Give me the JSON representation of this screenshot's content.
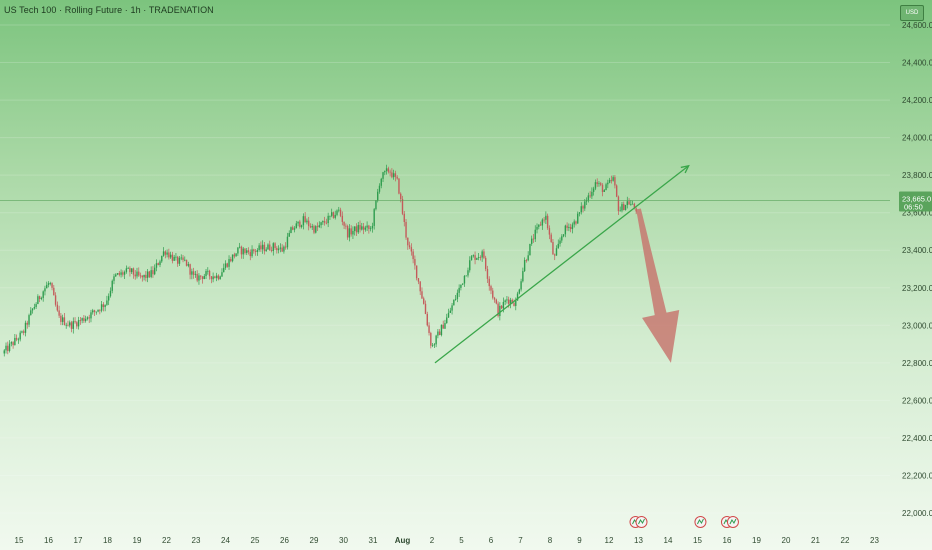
{
  "header": {
    "title": "US Tech 100 · Rolling Future · 1h · TRADENATION",
    "currency": "USD"
  },
  "chart_data": {
    "type": "candlestick",
    "ylim": [
      21950,
      24720
    ],
    "y_ticks": [
      22000,
      22200,
      22400,
      22600,
      22800,
      23000,
      23200,
      23400,
      23600,
      23800,
      24000,
      24200,
      24400,
      24600
    ],
    "y_tick_labels": [
      "22,000.0",
      "22,200.0",
      "22,400.0",
      "22,600.0",
      "22,800.0",
      "23,000.0",
      "23,200.0",
      "23,400.0",
      "23,600.0",
      "23,800.0",
      "24,000.0",
      "24,200.0",
      "24,400.0",
      "24,600.0"
    ],
    "x_ticks": [
      {
        "label": "15",
        "day": 0
      },
      {
        "label": "16",
        "day": 1
      },
      {
        "label": "17",
        "day": 2
      },
      {
        "label": "18",
        "day": 3
      },
      {
        "label": "19",
        "day": 4
      },
      {
        "label": "22",
        "day": 5
      },
      {
        "label": "23",
        "day": 6
      },
      {
        "label": "24",
        "day": 7
      },
      {
        "label": "25",
        "day": 8
      },
      {
        "label": "26",
        "day": 9
      },
      {
        "label": "29",
        "day": 10
      },
      {
        "label": "30",
        "day": 11
      },
      {
        "label": "31",
        "day": 12
      },
      {
        "label": "Aug",
        "day": 13,
        "bold": true
      },
      {
        "label": "2",
        "day": 14
      },
      {
        "label": "5",
        "day": 15
      },
      {
        "label": "6",
        "day": 16
      },
      {
        "label": "7",
        "day": 17
      },
      {
        "label": "8",
        "day": 18
      },
      {
        "label": "9",
        "day": 19
      },
      {
        "label": "12",
        "day": 20
      },
      {
        "label": "13",
        "day": 21
      },
      {
        "label": "14",
        "day": 22
      },
      {
        "label": "15",
        "day": 23
      },
      {
        "label": "16",
        "day": 24
      },
      {
        "label": "19",
        "day": 25
      },
      {
        "label": "20",
        "day": 26
      },
      {
        "label": "21",
        "day": 27
      },
      {
        "label": "22",
        "day": 28
      },
      {
        "label": "23",
        "day": 29
      }
    ],
    "current_price": "23,665.0",
    "current_price_value": 23665,
    "countdown": "06:50",
    "path_points": [
      {
        "day": -0.5,
        "price": 22850
      },
      {
        "day": 0.2,
        "price": 22960
      },
      {
        "day": 0.5,
        "price": 23080
      },
      {
        "day": 0.9,
        "price": 23190
      },
      {
        "day": 1.1,
        "price": 23230
      },
      {
        "day": 1.4,
        "price": 23040
      },
      {
        "day": 1.8,
        "price": 23000
      },
      {
        "day": 2.2,
        "price": 23030
      },
      {
        "day": 2.6,
        "price": 23070
      },
      {
        "day": 3.0,
        "price": 23120
      },
      {
        "day": 3.3,
        "price": 23260
      },
      {
        "day": 3.8,
        "price": 23290
      },
      {
        "day": 4.2,
        "price": 23250
      },
      {
        "day": 4.6,
        "price": 23280
      },
      {
        "day": 5.0,
        "price": 23400
      },
      {
        "day": 5.4,
        "price": 23340
      },
      {
        "day": 5.7,
        "price": 23340
      },
      {
        "day": 6.0,
        "price": 23250
      },
      {
        "day": 6.4,
        "price": 23270
      },
      {
        "day": 6.8,
        "price": 23260
      },
      {
        "day": 7.1,
        "price": 23330
      },
      {
        "day": 7.5,
        "price": 23400
      },
      {
        "day": 7.9,
        "price": 23390
      },
      {
        "day": 8.3,
        "price": 23410
      },
      {
        "day": 8.7,
        "price": 23420
      },
      {
        "day": 9.0,
        "price": 23400
      },
      {
        "day": 9.3,
        "price": 23510
      },
      {
        "day": 9.7,
        "price": 23560
      },
      {
        "day": 10.1,
        "price": 23510
      },
      {
        "day": 10.5,
        "price": 23560
      },
      {
        "day": 10.9,
        "price": 23610
      },
      {
        "day": 11.2,
        "price": 23490
      },
      {
        "day": 11.6,
        "price": 23520
      },
      {
        "day": 12.0,
        "price": 23510
      },
      {
        "day": 12.3,
        "price": 23780
      },
      {
        "day": 12.6,
        "price": 23830
      },
      {
        "day": 12.9,
        "price": 23760
      },
      {
        "day": 13.2,
        "price": 23460
      },
      {
        "day": 13.5,
        "price": 23300
      },
      {
        "day": 13.8,
        "price": 23100
      },
      {
        "day": 14.05,
        "price": 22880
      },
      {
        "day": 14.3,
        "price": 22960
      },
      {
        "day": 14.6,
        "price": 23050
      },
      {
        "day": 15.0,
        "price": 23200
      },
      {
        "day": 15.4,
        "price": 23360
      },
      {
        "day": 15.8,
        "price": 23380
      },
      {
        "day": 16.0,
        "price": 23220
      },
      {
        "day": 16.3,
        "price": 23070
      },
      {
        "day": 16.6,
        "price": 23140
      },
      {
        "day": 16.9,
        "price": 23120
      },
      {
        "day": 17.2,
        "price": 23340
      },
      {
        "day": 17.5,
        "price": 23470
      },
      {
        "day": 17.9,
        "price": 23590
      },
      {
        "day": 18.2,
        "price": 23350
      },
      {
        "day": 18.5,
        "price": 23500
      },
      {
        "day": 18.9,
        "price": 23550
      },
      {
        "day": 19.2,
        "price": 23640
      },
      {
        "day": 19.6,
        "price": 23760
      },
      {
        "day": 19.9,
        "price": 23720
      },
      {
        "day": 20.2,
        "price": 23780
      },
      {
        "day": 20.4,
        "price": 23610
      },
      {
        "day": 20.7,
        "price": 23660
      },
      {
        "day": 20.95,
        "price": 23620
      }
    ],
    "trendline": {
      "start": {
        "day": 14.1,
        "price": 22800
      },
      "end": {
        "day": 22.7,
        "price": 23850
      }
    },
    "forecast_arrow": {
      "start": {
        "day": 21.0,
        "price": 23620
      },
      "end": {
        "day": 22.1,
        "price": 22800
      }
    },
    "event_markers": [
      {
        "day": 21.0,
        "flags": 2
      },
      {
        "day": 23.1,
        "flags": 1
      },
      {
        "day": 24.1,
        "flags": 2
      }
    ],
    "colors": {
      "up": "#2e9c4e",
      "down": "#c45a5a",
      "trendline": "#3aa64a",
      "forecast_arrow": "#c7746d",
      "price_line": "#4a9a4e",
      "price_badge": "#5aa45c"
    }
  }
}
